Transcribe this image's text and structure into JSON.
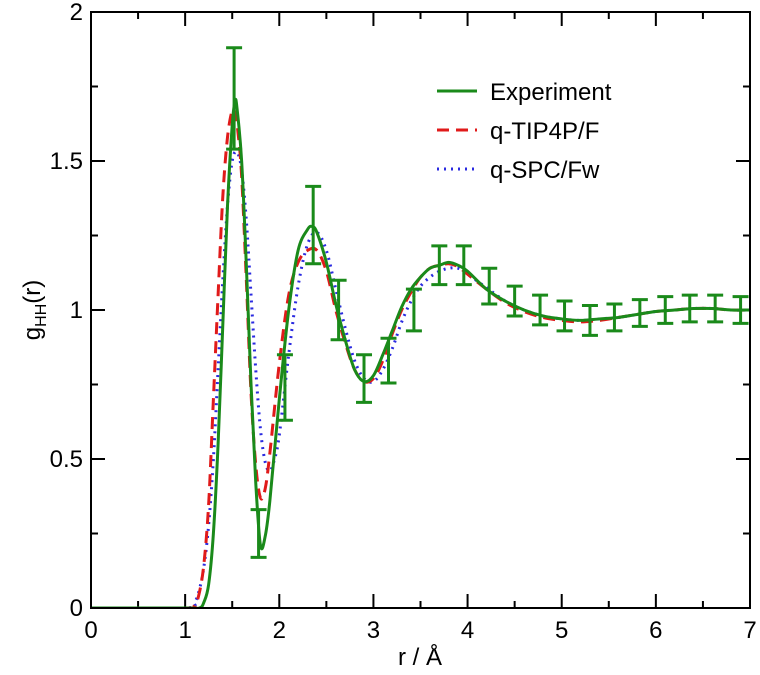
{
  "chart_data": {
    "type": "line",
    "title": "",
    "xlabel": "r / Å",
    "ylabel_main": "g",
    "ylabel_sub": "HH",
    "ylabel_tail": "(r)",
    "xlim": [
      0,
      7
    ],
    "ylim": [
      0,
      2
    ],
    "xticks": [
      0,
      1,
      2,
      3,
      4,
      5,
      6,
      7
    ],
    "xtick_labels": [
      "0",
      "1",
      "2",
      "3",
      "4",
      "5",
      "6",
      "7"
    ],
    "yticks": [
      0,
      0.5,
      1,
      1.5,
      2
    ],
    "ytick_labels": [
      "0",
      "0.5",
      "1",
      "1.5",
      "2"
    ],
    "grid": false,
    "legend_position": "top-right",
    "series": [
      {
        "name": "Experiment",
        "color": "#1a8a1a",
        "style": "solid",
        "x": [
          0.0,
          1.0,
          1.15,
          1.2,
          1.25,
          1.3,
          1.35,
          1.4,
          1.45,
          1.5,
          1.53,
          1.55,
          1.6,
          1.65,
          1.7,
          1.75,
          1.8,
          1.85,
          1.9,
          2.0,
          2.1,
          2.2,
          2.3,
          2.35,
          2.4,
          2.5,
          2.6,
          2.7,
          2.8,
          2.9,
          3.0,
          3.1,
          3.2,
          3.3,
          3.4,
          3.5,
          3.6,
          3.7,
          3.8,
          3.9,
          4.0,
          4.2,
          4.4,
          4.6,
          4.8,
          5.0,
          5.2,
          5.4,
          5.6,
          5.8,
          6.0,
          6.2,
          6.4,
          6.6,
          6.8,
          7.0
        ],
        "y": [
          0.0,
          0.0,
          0.0,
          0.02,
          0.08,
          0.25,
          0.55,
          0.95,
          1.35,
          1.62,
          1.7,
          1.68,
          1.5,
          1.15,
          0.75,
          0.42,
          0.21,
          0.24,
          0.36,
          0.7,
          1.0,
          1.2,
          1.27,
          1.28,
          1.26,
          1.16,
          1.02,
          0.9,
          0.8,
          0.76,
          0.78,
          0.85,
          0.93,
          1.01,
          1.07,
          1.11,
          1.14,
          1.15,
          1.16,
          1.15,
          1.13,
          1.07,
          1.03,
          1.0,
          0.98,
          0.97,
          0.965,
          0.97,
          0.975,
          0.985,
          0.995,
          1.0,
          1.005,
          1.005,
          1.0,
          1.0
        ]
      },
      {
        "name": "q-TIP4P/F",
        "color": "#e01a1a",
        "style": "dashed",
        "x": [
          0.0,
          1.0,
          1.1,
          1.15,
          1.2,
          1.25,
          1.3,
          1.35,
          1.4,
          1.45,
          1.5,
          1.53,
          1.56,
          1.6,
          1.65,
          1.7,
          1.75,
          1.8,
          1.85,
          1.9,
          2.0,
          2.1,
          2.2,
          2.3,
          2.4,
          2.5,
          2.6,
          2.7,
          2.8,
          2.9,
          3.0,
          3.1,
          3.2,
          3.3,
          3.4,
          3.5,
          3.6,
          3.7,
          3.8,
          3.9,
          4.0,
          4.2,
          4.4,
          4.6,
          4.8,
          5.0,
          5.2,
          5.4,
          5.6,
          5.8,
          6.0,
          6.2,
          6.4,
          6.6,
          6.8,
          7.0
        ],
        "y": [
          0.0,
          0.0,
          0.01,
          0.05,
          0.15,
          0.35,
          0.7,
          1.05,
          1.38,
          1.58,
          1.67,
          1.66,
          1.6,
          1.45,
          1.1,
          0.72,
          0.48,
          0.37,
          0.4,
          0.52,
          0.82,
          1.05,
          1.16,
          1.2,
          1.2,
          1.13,
          1.0,
          0.89,
          0.8,
          0.76,
          0.77,
          0.83,
          0.92,
          1.0,
          1.06,
          1.11,
          1.14,
          1.15,
          1.155,
          1.145,
          1.12,
          1.07,
          1.025,
          0.995,
          0.975,
          0.965,
          0.96,
          0.965,
          0.975,
          0.985,
          0.995,
          1.0,
          1.005,
          1.005,
          1.0,
          1.0
        ]
      },
      {
        "name": "q-SPC/Fw",
        "color": "#2a2ae0",
        "style": "dotted",
        "x": [
          0.0,
          1.0,
          1.1,
          1.15,
          1.2,
          1.25,
          1.3,
          1.35,
          1.4,
          1.45,
          1.5,
          1.55,
          1.6,
          1.65,
          1.7,
          1.75,
          1.8,
          1.85,
          1.9,
          1.95,
          2.0,
          2.1,
          2.2,
          2.3,
          2.4,
          2.5,
          2.6,
          2.7,
          2.8,
          2.9,
          3.0,
          3.1,
          3.2,
          3.3,
          3.4,
          3.5,
          3.6,
          3.7,
          3.8,
          3.9,
          4.0,
          4.2,
          4.4,
          4.6,
          4.8,
          5.0,
          5.2,
          5.4,
          5.6,
          5.8,
          6.0,
          6.2,
          6.4,
          6.6,
          6.8,
          7.0
        ],
        "y": [
          0.0,
          0.0,
          0.02,
          0.06,
          0.14,
          0.28,
          0.5,
          0.8,
          1.1,
          1.35,
          1.5,
          1.53,
          1.47,
          1.3,
          1.05,
          0.8,
          0.6,
          0.49,
          0.46,
          0.5,
          0.58,
          0.85,
          1.08,
          1.22,
          1.26,
          1.2,
          1.07,
          0.94,
          0.83,
          0.77,
          0.76,
          0.8,
          0.87,
          0.96,
          1.03,
          1.08,
          1.11,
          1.13,
          1.14,
          1.14,
          1.12,
          1.075,
          1.03,
          1.0,
          0.98,
          0.97,
          0.965,
          0.97,
          0.975,
          0.985,
          0.995,
          1.0,
          1.005,
          1.005,
          1.0,
          1.0
        ]
      }
    ],
    "error_bars": {
      "series": "Experiment",
      "points": [
        {
          "x": 1.52,
          "y": 1.71,
          "err": 0.17
        },
        {
          "x": 1.78,
          "y": 0.25,
          "err": 0.08
        },
        {
          "x": 2.06,
          "y": 0.74,
          "err": 0.11
        },
        {
          "x": 2.36,
          "y": 1.285,
          "err": 0.13
        },
        {
          "x": 2.63,
          "y": 1.0,
          "err": 0.1
        },
        {
          "x": 2.9,
          "y": 0.77,
          "err": 0.08
        },
        {
          "x": 3.16,
          "y": 0.83,
          "err": 0.075
        },
        {
          "x": 3.43,
          "y": 1.0,
          "err": 0.07
        },
        {
          "x": 3.7,
          "y": 1.15,
          "err": 0.065
        },
        {
          "x": 3.96,
          "y": 1.15,
          "err": 0.065
        },
        {
          "x": 4.23,
          "y": 1.08,
          "err": 0.06
        },
        {
          "x": 4.5,
          "y": 1.03,
          "err": 0.05
        },
        {
          "x": 4.77,
          "y": 1.0,
          "err": 0.05
        },
        {
          "x": 5.03,
          "y": 0.98,
          "err": 0.05
        },
        {
          "x": 5.3,
          "y": 0.965,
          "err": 0.05
        },
        {
          "x": 5.56,
          "y": 0.975,
          "err": 0.045
        },
        {
          "x": 5.83,
          "y": 0.99,
          "err": 0.045
        },
        {
          "x": 6.1,
          "y": 1.0,
          "err": 0.045
        },
        {
          "x": 6.36,
          "y": 1.005,
          "err": 0.045
        },
        {
          "x": 6.63,
          "y": 1.005,
          "err": 0.045
        },
        {
          "x": 6.9,
          "y": 1.0,
          "err": 0.045
        }
      ]
    }
  }
}
